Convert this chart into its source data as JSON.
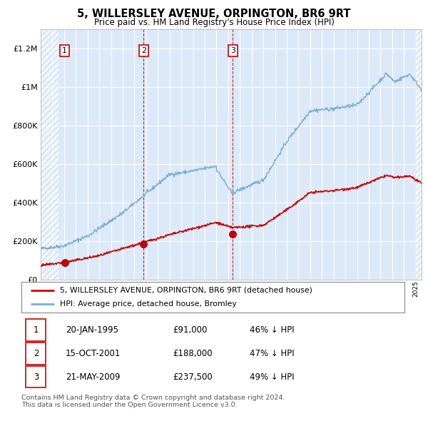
{
  "title": "5, WILLERSLEY AVENUE, ORPINGTON, BR6 9RT",
  "subtitle": "Price paid vs. HM Land Registry's House Price Index (HPI)",
  "ylim": [
    0,
    1300000
  ],
  "xlim_start": 1993.0,
  "xlim_end": 2025.5,
  "yticks": [
    0,
    200000,
    400000,
    600000,
    800000,
    1000000,
    1200000
  ],
  "ytick_labels": [
    "£0",
    "£200K",
    "£400K",
    "£600K",
    "£800K",
    "£1M",
    "£1.2M"
  ],
  "bg_color": "#dce9f8",
  "grid_color": "#ffffff",
  "sale_dates": [
    1995.055,
    2001.79,
    2009.385
  ],
  "sale_prices": [
    91000,
    188000,
    237500
  ],
  "sale_labels": [
    "1",
    "2",
    "3"
  ],
  "legend_red_label": "5, WILLERSLEY AVENUE, ORPINGTON, BR6 9RT (detached house)",
  "legend_blue_label": "HPI: Average price, detached house, Bromley",
  "table_entries": [
    {
      "num": "1",
      "date": "20-JAN-1995",
      "price": "£91,000",
      "hpi": "46% ↓ HPI"
    },
    {
      "num": "2",
      "date": "15-OCT-2001",
      "price": "£188,000",
      "hpi": "47% ↓ HPI"
    },
    {
      "num": "3",
      "date": "21-MAY-2009",
      "price": "£237,500",
      "hpi": "49% ↓ HPI"
    }
  ],
  "footnote": "Contains HM Land Registry data © Crown copyright and database right 2024.\nThis data is licensed under the Open Government Licence v3.0.",
  "red_color": "#cc0000",
  "blue_color": "#7aafd4",
  "dot_color": "#cc0000",
  "hatch_region_end": 1994.5,
  "hatch_region_start_right": 2025.0
}
